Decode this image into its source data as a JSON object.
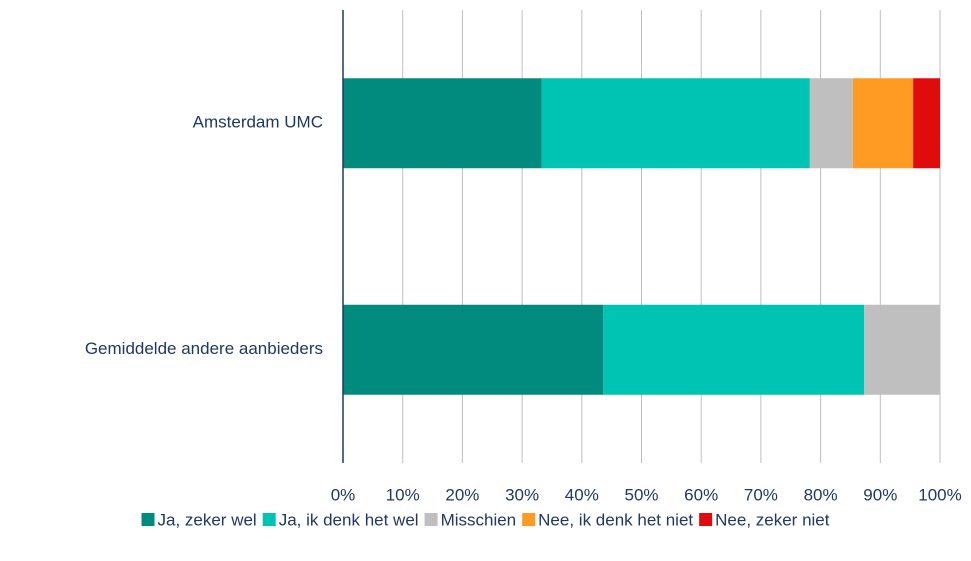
{
  "chart_data": {
    "type": "stacked_bar_horizontal",
    "categories": [
      "Amsterdam UMC",
      "Gemiddelde andere aanbieders"
    ],
    "series": [
      {
        "name": "Ja, zeker wel",
        "color": "#018B7E",
        "values": [
          33.3,
          43.6
        ]
      },
      {
        "name": "Ja, ik denk het wel",
        "color": "#00C4B3",
        "values": [
          44.9,
          43.7
        ]
      },
      {
        "name": "Misschien",
        "color": "#BFBFBF",
        "values": [
          7.2,
          12.7
        ]
      },
      {
        "name": "Nee, ik denk het niet",
        "color": "#FF9A22",
        "values": [
          10.1,
          0
        ]
      },
      {
        "name": "Nee, zeker niet",
        "color": "#E00B0B",
        "values": [
          4.5,
          0
        ]
      }
    ],
    "xlim": [
      0,
      100
    ],
    "xticks": [
      {
        "value": 0,
        "label": "0%"
      },
      {
        "value": 10,
        "label": "10%"
      },
      {
        "value": 20,
        "label": "20%"
      },
      {
        "value": 30,
        "label": "30%"
      },
      {
        "value": 40,
        "label": "40%"
      },
      {
        "value": 50,
        "label": "50%"
      },
      {
        "value": 60,
        "label": "60%"
      },
      {
        "value": 70,
        "label": "70%"
      },
      {
        "value": 80,
        "label": "80%"
      },
      {
        "value": 90,
        "label": "90%"
      },
      {
        "value": 100,
        "label": "100%"
      }
    ],
    "grid": true,
    "legend": "bottom"
  }
}
